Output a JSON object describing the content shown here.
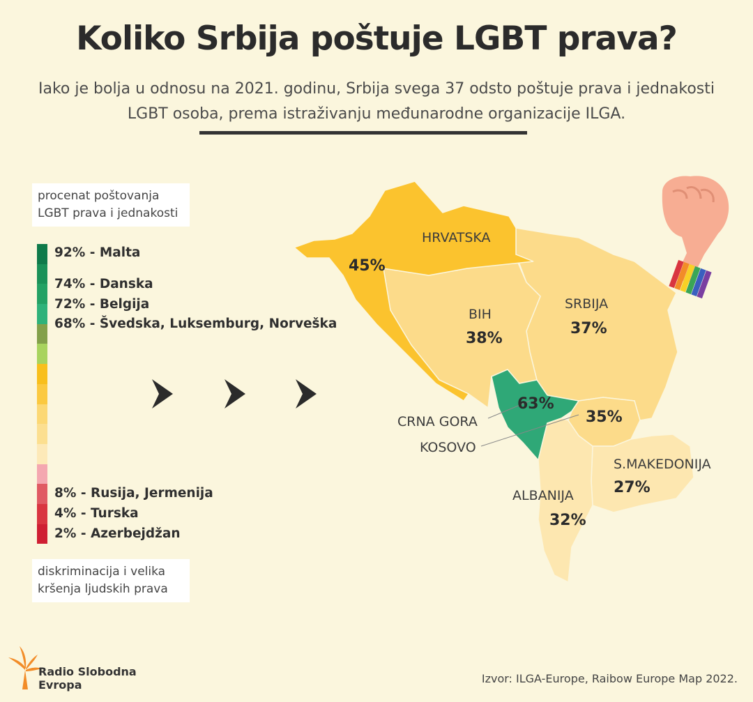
{
  "title": "Koliko Srbija poštuje LGBT prava?",
  "subtitle": {
    "line1": "Iako je bolja u odnosu na 2021. godinu, Srbija svega 37 odsto poštuje prava i jednakosti",
    "line2": "LGBT osoba, prema istraživanju međunarodne organizacije ILGA."
  },
  "legend": {
    "top_line1": "procenat poštovanja",
    "top_line2": "LGBT prava i jednakosti",
    "bottom_line1": "diskriminacija i velika",
    "bottom_line2": "kršenja ljudskih prava",
    "scale_colors": [
      "#0f7a4a",
      "#1a9158",
      "#23a164",
      "#2fb27a",
      "#83a04a",
      "#a8d35e",
      "#f8bf1c",
      "#fbc940",
      "#fcd874",
      "#fcdf90",
      "#fde9b8",
      "#f4a7b0",
      "#e05a63",
      "#d93540",
      "#cf1f33"
    ],
    "entries": [
      {
        "label": "92% - Malta"
      },
      {
        "label": "74% - Danska"
      },
      {
        "label": "72% - Belgija"
      },
      {
        "label": "68% - Švedska, Luksemburg, Norveška"
      },
      {
        "label": "8% - Rusija, Jermenija"
      },
      {
        "label": "4% - Turska"
      },
      {
        "label": "2% - Azerbejdžan"
      }
    ]
  },
  "map": {
    "countries": [
      {
        "name": "HRVATSKA",
        "value": "45%",
        "color": "#fbc32e"
      },
      {
        "name": "BIH",
        "value": "38%",
        "color": "#fcdb8a"
      },
      {
        "name": "SRBIJA",
        "value": "37%",
        "color": "#fcdb8a"
      },
      {
        "name": "CRNA GORA",
        "value": "63%",
        "color": "#2fa877"
      },
      {
        "name": "KOSOVO",
        "value": "35%",
        "color": "#fcdb8a"
      },
      {
        "name": "S.MAKEDONIJA",
        "value": "27%",
        "color": "#fde7b0"
      },
      {
        "name": "ALBANIJA",
        "value": "32%",
        "color": "#fde7b0"
      }
    ]
  },
  "source": "Izvor: ILGA-Europe, Raibow Europe Map 2022.",
  "logo": {
    "line1": "Radio Slobodna",
    "line2": "Evropa"
  }
}
